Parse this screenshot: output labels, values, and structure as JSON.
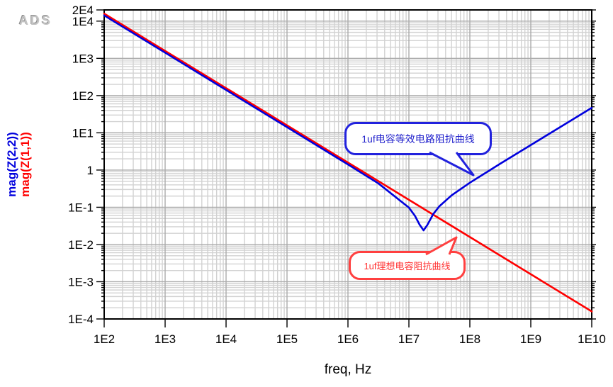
{
  "logo": "ADS",
  "chart_data": {
    "type": "line",
    "title": "",
    "xlabel": "freq, Hz",
    "ylabel": "",
    "x_scale": "log",
    "y_scale": "log",
    "x_range": [
      100,
      10000000000
    ],
    "y_range": [
      0.0001,
      20000
    ],
    "grid": true,
    "x_ticks": [
      {
        "label": "1E2",
        "value": 100
      },
      {
        "label": "1E3",
        "value": 1000
      },
      {
        "label": "1E4",
        "value": 10000
      },
      {
        "label": "1E5",
        "value": 100000
      },
      {
        "label": "1E6",
        "value": 1000000
      },
      {
        "label": "1E7",
        "value": 10000000
      },
      {
        "label": "1E8",
        "value": 100000000
      },
      {
        "label": "1E9",
        "value": 1000000000
      },
      {
        "label": "1E10",
        "value": 10000000000
      }
    ],
    "y_ticks": [
      {
        "label": "2E4",
        "value": 20000
      },
      {
        "label": "1E4",
        "value": 10000
      },
      {
        "label": "1E3",
        "value": 1000
      },
      {
        "label": "1E2",
        "value": 100
      },
      {
        "label": "1E1",
        "value": 10
      },
      {
        "label": "1",
        "value": 1
      },
      {
        "label": "1E-1",
        "value": 0.1
      },
      {
        "label": "1E-2",
        "value": 0.01
      },
      {
        "label": "1E-3",
        "value": 0.001
      },
      {
        "label": "1E-4",
        "value": 0.0001
      }
    ],
    "series": [
      {
        "name": "mag(Z(1,1))",
        "color": "#ff0000",
        "points": [
          [
            100,
            15900
          ],
          [
            1000,
            1590
          ],
          [
            10000,
            159
          ],
          [
            100000,
            15.9
          ],
          [
            1000000.0,
            1.59
          ],
          [
            10000000.0,
            0.159
          ],
          [
            100000000.0,
            0.0159
          ],
          [
            1000000000.0,
            0.00159
          ],
          [
            10000000000.0,
            0.000159
          ]
        ]
      },
      {
        "name": "mag(Z(2,2))",
        "color": "#0000dd",
        "points": [
          [
            100,
            14200
          ],
          [
            1000,
            1420
          ],
          [
            10000,
            142
          ],
          [
            100000,
            14.2
          ],
          [
            1000000.0,
            1.417
          ],
          [
            3160000.0,
            0.4375
          ],
          [
            10000000.0,
            0.0981
          ],
          [
            12600000.0,
            0.0587
          ],
          [
            15000000.0,
            0.0341
          ],
          [
            17400000.0,
            0.024
          ],
          [
            20000000.0,
            0.0332
          ],
          [
            25000000.0,
            0.0652
          ],
          [
            31600000.0,
            0.1063
          ],
          [
            50000000.0,
            0.208
          ],
          [
            100000000.0,
            0.4564
          ],
          [
            316000000.0,
            1.481
          ],
          [
            1000000000.0,
            4.7
          ],
          [
            3160000000.0,
            14.85
          ],
          [
            10000000000.0,
            47
          ]
        ]
      }
    ],
    "annotations": [
      {
        "text": "1uf电容等效电路阻抗曲线",
        "color": "#2222cc"
      },
      {
        "text": "1uf理想电容阻抗曲线",
        "color": "#ff3333"
      }
    ]
  }
}
